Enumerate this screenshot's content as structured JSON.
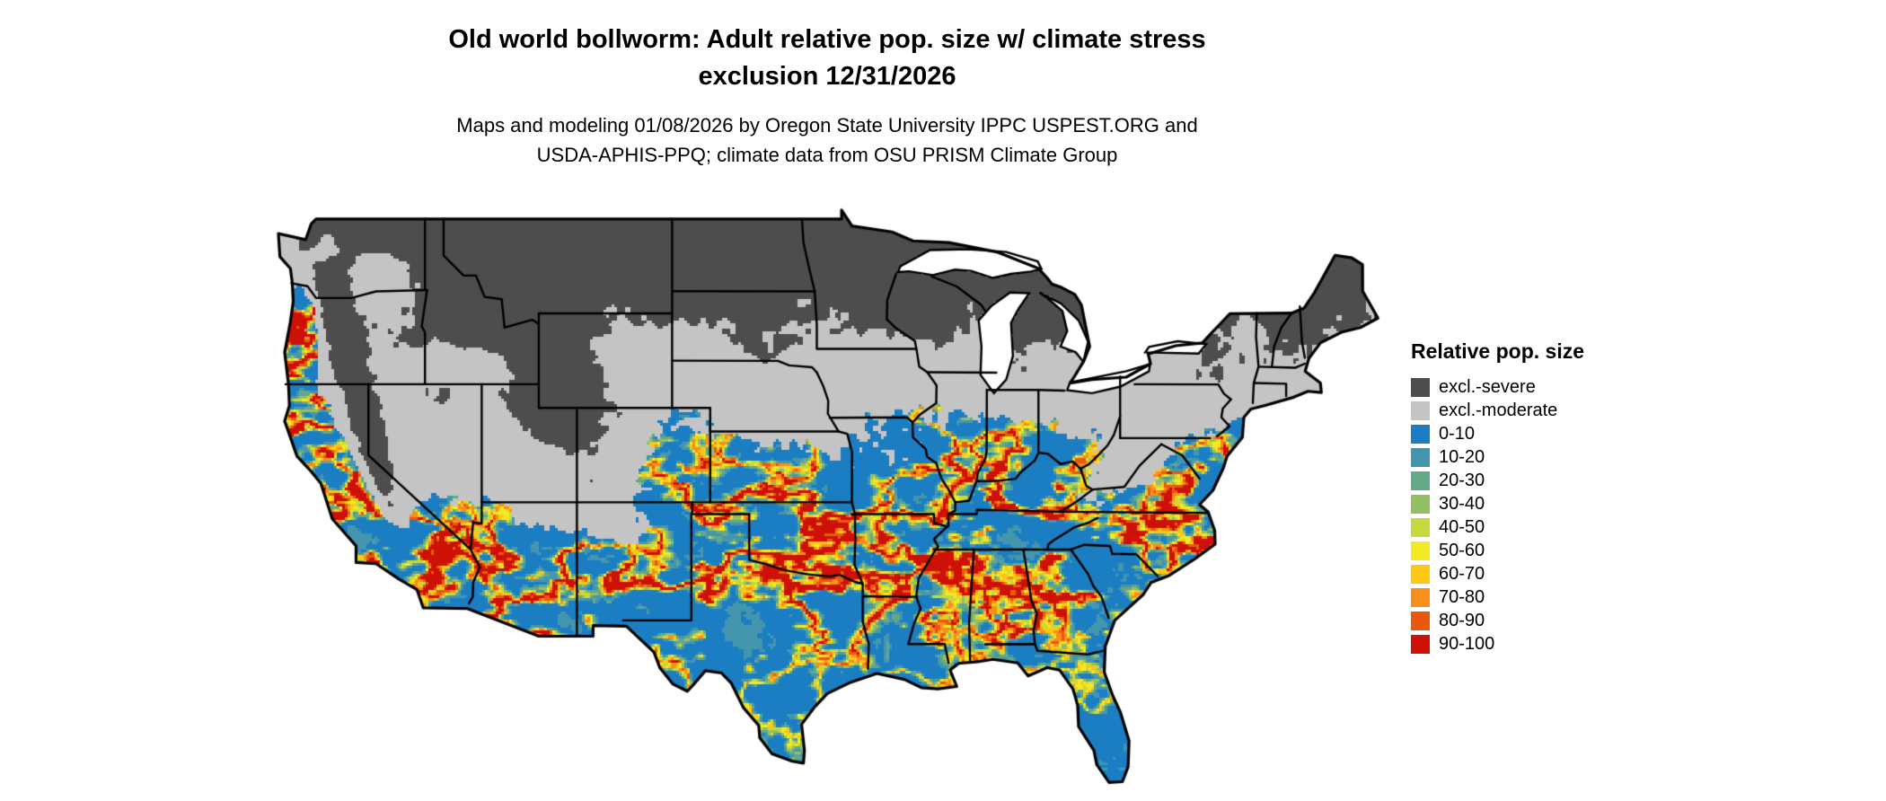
{
  "header": {
    "title_line1": "Old world bollworm: Adult relative pop. size w/ climate stress",
    "title_line2": "exclusion 12/31/2026",
    "subtitle_line1": "Maps and modeling 01/08/2026 by Oregon State University IPPC USPEST.ORG and",
    "subtitle_line2": "USDA-APHIS-PPQ; climate data from OSU PRISM Climate Group"
  },
  "map": {
    "background_color": "#ffffff",
    "boundary_color": "#000000"
  },
  "legend": {
    "title": "Relative pop. size",
    "items": [
      {
        "label": "excl.-severe",
        "color": "#4d4d4d"
      },
      {
        "label": "excl.-moderate",
        "color": "#c4c4c4"
      },
      {
        "label": "0-10",
        "color": "#1b7ec2"
      },
      {
        "label": "10-20",
        "color": "#4496ae"
      },
      {
        "label": "20-30",
        "color": "#63a888"
      },
      {
        "label": "30-40",
        "color": "#95bf63"
      },
      {
        "label": "40-50",
        "color": "#c8d93f"
      },
      {
        "label": "50-60",
        "color": "#f2ea25"
      },
      {
        "label": "60-70",
        "color": "#fdc713"
      },
      {
        "label": "70-80",
        "color": "#f78e1e"
      },
      {
        "label": "80-90",
        "color": "#e8590e"
      },
      {
        "label": "90-100",
        "color": "#cd1106"
      }
    ]
  }
}
